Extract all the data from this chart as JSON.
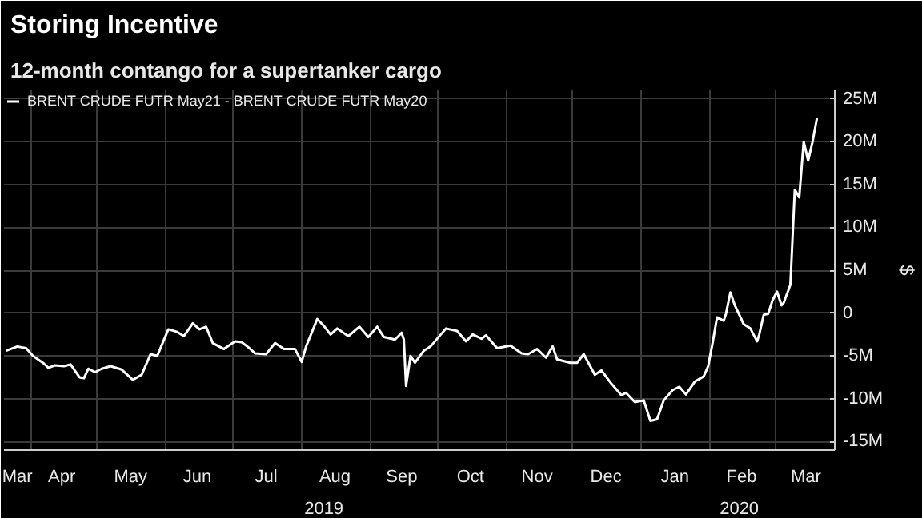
{
  "chart_data": {
    "type": "line",
    "title": "Storing Incentive",
    "subtitle": "12-month contango for a supertanker cargo",
    "ylabel": "$",
    "legend": "top left",
    "grid": true,
    "marker": "none",
    "line_style": "solid",
    "xlim": [
      "2019-03-20",
      "2020-03-28"
    ],
    "ylim": [
      -16,
      26
    ],
    "yticks": [
      {
        "value": -15,
        "label": "-15M"
      },
      {
        "value": -10,
        "label": "-10M"
      },
      {
        "value": -5,
        "label": "-5M"
      },
      0,
      {
        "value": 5,
        "label": "5M"
      },
      {
        "value": 10,
        "label": "10M"
      },
      {
        "value": 15,
        "label": "15M"
      },
      {
        "value": 20,
        "label": "20M"
      },
      {
        "value": 25,
        "label": "25M"
      }
    ],
    "xticks": [
      {
        "value": "2019-03-26",
        "label": "Mar"
      },
      {
        "value": "2019-04-01",
        "label": null
      },
      {
        "value": "2019-04-15",
        "label": "Apr"
      },
      {
        "value": "2019-05-01",
        "label": null
      },
      {
        "value": "2019-05-16",
        "label": "May"
      },
      {
        "value": "2019-06-01",
        "label": null
      },
      {
        "value": "2019-06-15",
        "label": "Jun"
      },
      {
        "value": "2019-07-01",
        "label": null
      },
      {
        "value": "2019-07-16",
        "label": "Jul"
      },
      {
        "value": "2019-08-01",
        "label": null
      },
      {
        "value": "2019-08-16",
        "label": "Aug"
      },
      {
        "value": "2019-09-01",
        "label": null
      },
      {
        "value": "2019-09-15",
        "label": "Sep"
      },
      {
        "value": "2019-10-01",
        "label": null
      },
      {
        "value": "2019-10-16",
        "label": "Oct"
      },
      {
        "value": "2019-11-01",
        "label": null
      },
      {
        "value": "2019-11-15",
        "label": "Nov"
      },
      {
        "value": "2019-12-01",
        "label": null
      },
      {
        "value": "2019-12-16",
        "label": "Dec"
      },
      {
        "value": "2020-01-01",
        "label": null
      },
      {
        "value": "2020-01-16",
        "label": "Jan"
      },
      {
        "value": "2020-02-01",
        "label": null
      },
      {
        "value": "2020-02-15",
        "label": "Feb"
      },
      {
        "value": "2020-03-01",
        "label": null
      },
      {
        "value": "2020-03-15",
        "label": "Mar"
      }
    ],
    "annotations": [
      "2019",
      "2020"
    ],
    "series": [
      {
        "name": "BRENT CRUDE FUTR May21 - BRENT CRUDE FUTR May20",
        "color": "#ffffff",
        "x": [
          "2019-03-21",
          "2019-03-26",
          "2019-03-30",
          "2019-04-02",
          "2019-04-07",
          "2019-04-09",
          "2019-04-12",
          "2019-04-16",
          "2019-04-19",
          "2019-04-23",
          "2019-04-25",
          "2019-04-27",
          "2019-04-30",
          "2019-05-03",
          "2019-05-07",
          "2019-05-12",
          "2019-05-17",
          "2019-05-21",
          "2019-05-25",
          "2019-05-28",
          "2019-06-02",
          "2019-06-06",
          "2019-06-09",
          "2019-06-13",
          "2019-06-16",
          "2019-06-19",
          "2019-06-22",
          "2019-06-27",
          "2019-07-02",
          "2019-07-05",
          "2019-07-08",
          "2019-07-11",
          "2019-07-16",
          "2019-07-20",
          "2019-07-24",
          "2019-07-29",
          "2019-08-01",
          "2019-08-03",
          "2019-08-08",
          "2019-08-11",
          "2019-08-14",
          "2019-08-17",
          "2019-08-22",
          "2019-08-27",
          "2019-08-31",
          "2019-09-04",
          "2019-09-07",
          "2019-09-12",
          "2019-09-15",
          "2019-09-16",
          "2019-09-17",
          "2019-09-19",
          "2019-09-21",
          "2019-09-25",
          "2019-09-28",
          "2019-10-05",
          "2019-10-10",
          "2019-10-14",
          "2019-10-17",
          "2019-10-21",
          "2019-10-23",
          "2019-10-28",
          "2019-11-03",
          "2019-11-08",
          "2019-11-11",
          "2019-11-15",
          "2019-11-19",
          "2019-11-22",
          "2019-11-24",
          "2019-11-30",
          "2019-12-03",
          "2019-12-06",
          "2019-12-11",
          "2019-12-14",
          "2019-12-18",
          "2019-12-23",
          "2019-12-25",
          "2019-12-29",
          "2020-01-02",
          "2020-01-05",
          "2020-01-08",
          "2020-01-11",
          "2020-01-15",
          "2020-01-18",
          "2020-01-21",
          "2020-01-25",
          "2020-01-29",
          "2020-01-31",
          "2020-02-02",
          "2020-02-04",
          "2020-02-07",
          "2020-02-08",
          "2020-02-10",
          "2020-02-12",
          "2020-02-16",
          "2020-02-19",
          "2020-02-22",
          "2020-02-23",
          "2020-02-25",
          "2020-02-27",
          "2020-02-29",
          "2020-03-02",
          "2020-03-04",
          "2020-03-05",
          "2020-03-08",
          "2020-03-10",
          "2020-03-12",
          "2020-03-14",
          "2020-03-16",
          "2020-03-18",
          "2020-03-20"
        ],
        "values": [
          -4.4,
          -3.9,
          -4.1,
          -5.0,
          -5.9,
          -6.4,
          -6.1,
          -6.2,
          -6.0,
          -7.5,
          -7.6,
          -6.5,
          -6.9,
          -6.5,
          -6.2,
          -6.6,
          -7.8,
          -7.2,
          -4.8,
          -5.0,
          -1.9,
          -2.2,
          -2.7,
          -1.2,
          -1.9,
          -1.6,
          -3.5,
          -4.2,
          -3.3,
          -3.4,
          -4.0,
          -4.7,
          -4.8,
          -3.5,
          -4.2,
          -4.2,
          -5.7,
          -3.9,
          -0.7,
          -1.5,
          -2.5,
          -1.8,
          -2.7,
          -1.6,
          -2.8,
          -1.6,
          -2.8,
          -3.1,
          -2.3,
          -3.1,
          -8.5,
          -5.0,
          -5.8,
          -4.4,
          -3.9,
          -1.8,
          -2.1,
          -3.3,
          -2.5,
          -3.0,
          -2.6,
          -4.1,
          -3.8,
          -4.7,
          -4.8,
          -4.2,
          -5.2,
          -3.9,
          -5.4,
          -5.8,
          -5.8,
          -4.8,
          -7.2,
          -6.7,
          -8.1,
          -9.6,
          -9.3,
          -10.4,
          -10.2,
          -12.6,
          -12.4,
          -10.2,
          -9.0,
          -8.6,
          -9.5,
          -8.0,
          -7.4,
          -6.2,
          -3.5,
          -0.5,
          -0.9,
          -0.1,
          2.4,
          0.9,
          -1.3,
          -1.8,
          -3.3,
          -2.5,
          -0.2,
          -0.1,
          1.5,
          2.5,
          0.9,
          1.2,
          3.3,
          14.4,
          13.5,
          20.0,
          17.8,
          20.0,
          22.8
        ]
      }
    ]
  }
}
